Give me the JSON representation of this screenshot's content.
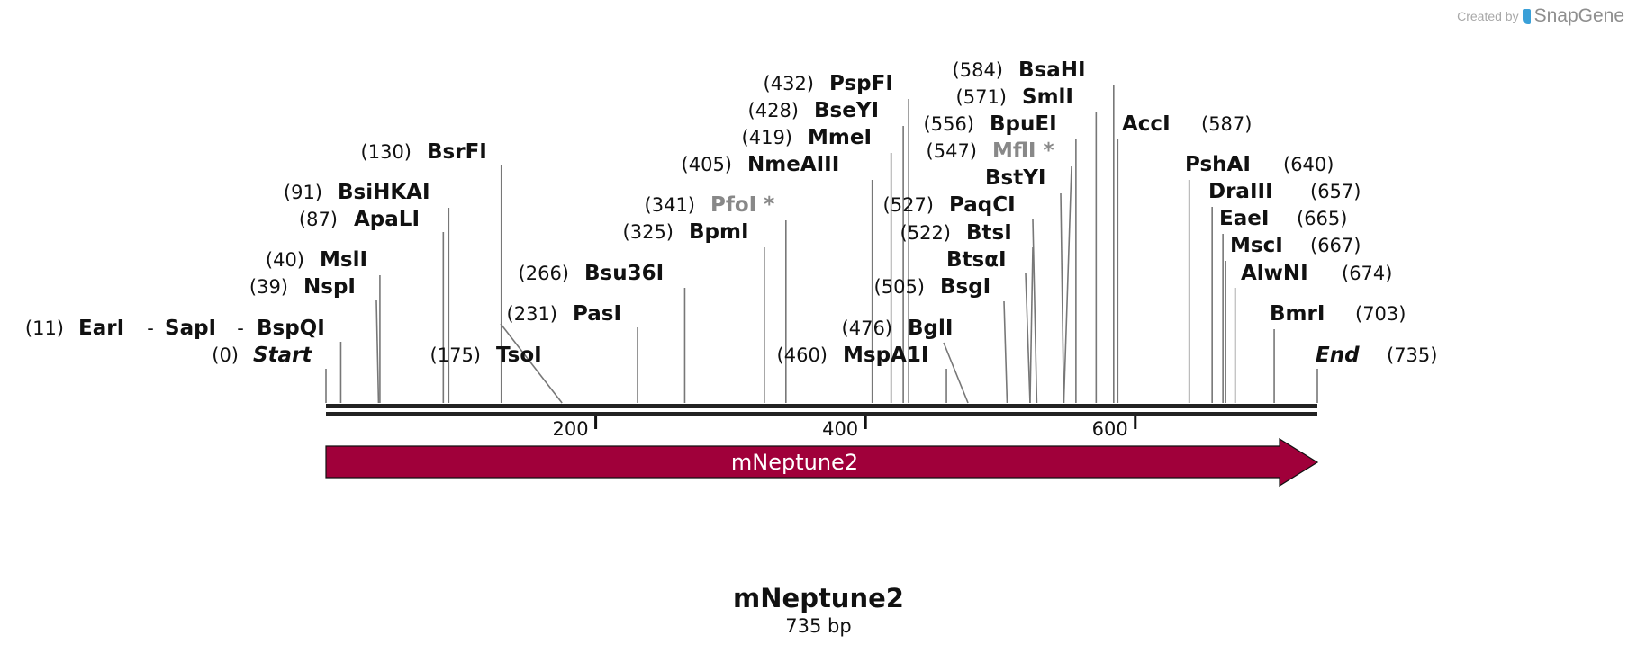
{
  "credit": {
    "prefix": "Created by",
    "brand": "SnapGene"
  },
  "sequence": {
    "name": "mNeptune2",
    "length_label": "735 bp",
    "length": 735
  },
  "ruler": {
    "ticks": [
      {
        "pos": 200,
        "label": "200"
      },
      {
        "pos": 400,
        "label": "400"
      },
      {
        "pos": 600,
        "label": "600"
      }
    ]
  },
  "feature": {
    "name": "mNeptune2",
    "start": 0,
    "end": 735,
    "color": "#a0003a",
    "direction": "forward"
  },
  "sites": [
    {
      "name": "Start",
      "pos": 0,
      "num": "(0)",
      "style": "italic"
    },
    {
      "name": "EarI",
      "pos": 11,
      "num": "(11)"
    },
    {
      "name": "SapI",
      "pos": 11,
      "num": ""
    },
    {
      "name": "BspQI",
      "pos": 11,
      "num": ""
    },
    {
      "name": "NspI",
      "pos": 39,
      "num": "(39)"
    },
    {
      "name": "MslI",
      "pos": 40,
      "num": "(40)"
    },
    {
      "name": "ApaLI",
      "pos": 87,
      "num": "(87)"
    },
    {
      "name": "BsiHKAI",
      "pos": 91,
      "num": "(91)"
    },
    {
      "name": "BsrFI",
      "pos": 130,
      "num": "(130)"
    },
    {
      "name": "TsoI",
      "pos": 175,
      "num": "(175)"
    },
    {
      "name": "PasI",
      "pos": 231,
      "num": "(231)"
    },
    {
      "name": "Bsu36I",
      "pos": 266,
      "num": "(266)"
    },
    {
      "name": "BpmI",
      "pos": 325,
      "num": "(325)"
    },
    {
      "name": "PfoI",
      "pos": 341,
      "num": "(341)",
      "style": "gray",
      "mark": "*"
    },
    {
      "name": "NmeAIII",
      "pos": 405,
      "num": "(405)"
    },
    {
      "name": "MmeI",
      "pos": 419,
      "num": "(419)"
    },
    {
      "name": "BseYI",
      "pos": 428,
      "num": "(428)"
    },
    {
      "name": "PspFI",
      "pos": 432,
      "num": "(432)"
    },
    {
      "name": "MspA1I",
      "pos": 460,
      "num": "(460)"
    },
    {
      "name": "BglI",
      "pos": 476,
      "num": "(476)"
    },
    {
      "name": "BsgI",
      "pos": 505,
      "num": "(505)"
    },
    {
      "name": "BtsαI",
      "pos": 522,
      "num": ""
    },
    {
      "name": "BtsI",
      "pos": 522,
      "num": "(522)"
    },
    {
      "name": "PaqCI",
      "pos": 527,
      "num": "(527)"
    },
    {
      "name": "BstYI",
      "pos": 547,
      "num": ""
    },
    {
      "name": "MflI",
      "pos": 547,
      "num": "(547)",
      "style": "gray",
      "mark": "*"
    },
    {
      "name": "BpuEI",
      "pos": 556,
      "num": "(556)"
    },
    {
      "name": "SmlI",
      "pos": 571,
      "num": "(571)"
    },
    {
      "name": "BsaHI",
      "pos": 584,
      "num": "(584)"
    },
    {
      "name": "AccI",
      "pos": 587,
      "num": "(587)"
    },
    {
      "name": "PshAI",
      "pos": 640,
      "num": "(640)"
    },
    {
      "name": "DraIII",
      "pos": 657,
      "num": "(657)"
    },
    {
      "name": "EaeI",
      "pos": 665,
      "num": "(665)"
    },
    {
      "name": "MscI",
      "pos": 667,
      "num": "(667)"
    },
    {
      "name": "AlwNI",
      "pos": 674,
      "num": "(674)"
    },
    {
      "name": "BmrI",
      "pos": 703,
      "num": "(703)"
    },
    {
      "name": "End",
      "pos": 735,
      "num": "(735)",
      "style": "italic"
    }
  ]
}
